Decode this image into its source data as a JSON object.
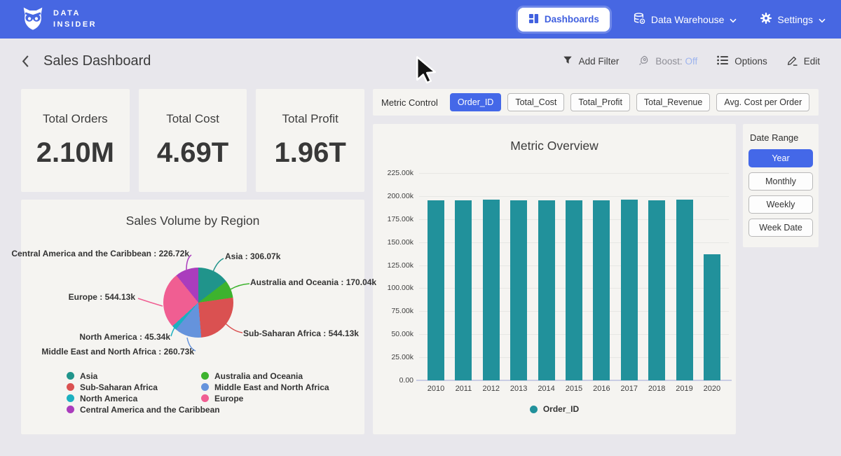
{
  "nav": {
    "brand_line1": "DATA",
    "brand_line2": "INSIDER",
    "items": [
      {
        "label": "Dashboards"
      },
      {
        "label": "Data Warehouse"
      },
      {
        "label": "Settings"
      }
    ]
  },
  "header": {
    "title": "Sales Dashboard",
    "toolbar": {
      "add_filter": "Add Filter",
      "boost_label": "Boost:",
      "boost_state": "Off",
      "options": "Options",
      "edit": "Edit"
    }
  },
  "kpis": [
    {
      "label": "Total Orders",
      "value": "2.10M"
    },
    {
      "label": "Total Cost",
      "value": "4.69T"
    },
    {
      "label": "Total Profit",
      "value": "1.96T"
    }
  ],
  "metric_control": {
    "label": "Metric Control",
    "buttons": [
      "Order_ID",
      "Total_Cost",
      "Total_Profit",
      "Total_Revenue",
      "Avg. Cost per Order"
    ],
    "selected": "Order_ID"
  },
  "date_range": {
    "label": "Date Range",
    "buttons": [
      "Year",
      "Monthly",
      "Weekly",
      "Week Date"
    ],
    "selected": "Year"
  },
  "colors": {
    "navbar_blue": "#4767e2",
    "accent_blue": "#4468e8",
    "bar_teal": "#21919b",
    "boost_off_blue": "#9db4ee",
    "card_bg": "#f5f4f1",
    "page_bg": "#e8e7ec"
  },
  "chart_data": [
    {
      "type": "pie",
      "title": "Sales Volume by Region",
      "unit": "k",
      "slices": [
        {
          "label": "Asia",
          "value": 306.07,
          "display": "306.07k",
          "color": "#20948b"
        },
        {
          "label": "Australia and Oceania",
          "value": 170.04,
          "display": "170.04k",
          "color": "#3db32e"
        },
        {
          "label": "Sub-Saharan Africa",
          "value": 544.13,
          "display": "544.13k",
          "color": "#da5151"
        },
        {
          "label": "Middle East and North Africa",
          "value": 260.73,
          "display": "260.73k",
          "color": "#6593dc"
        },
        {
          "label": "North America",
          "value": 45.34,
          "display": "45.34k",
          "color": "#1cb0c0"
        },
        {
          "label": "Europe",
          "value": 544.13,
          "display": "544.13k",
          "color": "#f05e92"
        },
        {
          "label": "Central America and the Caribbean",
          "value": 226.72,
          "display": "226.72k",
          "color": "#aa3cbd"
        }
      ],
      "start_angle_deg": 0,
      "direction": "clockwise",
      "legend_columns": [
        [
          0,
          2,
          4,
          6
        ],
        [
          1,
          3,
          5
        ]
      ]
    },
    {
      "type": "bar",
      "title": "Metric Overview",
      "categories": [
        "2010",
        "2011",
        "2012",
        "2013",
        "2014",
        "2015",
        "2016",
        "2017",
        "2018",
        "2019",
        "2020"
      ],
      "series": [
        {
          "name": "Order_ID",
          "color": "#21919b",
          "values": [
            195.6,
            195.4,
            196.4,
            195.2,
            195.4,
            195.1,
            195.7,
            196.2,
            195.3,
            195.8,
            136.6
          ]
        }
      ],
      "unit": "k",
      "ylim": [
        0,
        225
      ],
      "yticks": [
        "225.00k",
        "200.00k",
        "175.00k",
        "150.00k",
        "125.00k",
        "100.00k",
        "75.00k",
        "50.00k",
        "25.00k",
        "0.00"
      ],
      "grid": true,
      "legend_position": "bottom"
    }
  ]
}
